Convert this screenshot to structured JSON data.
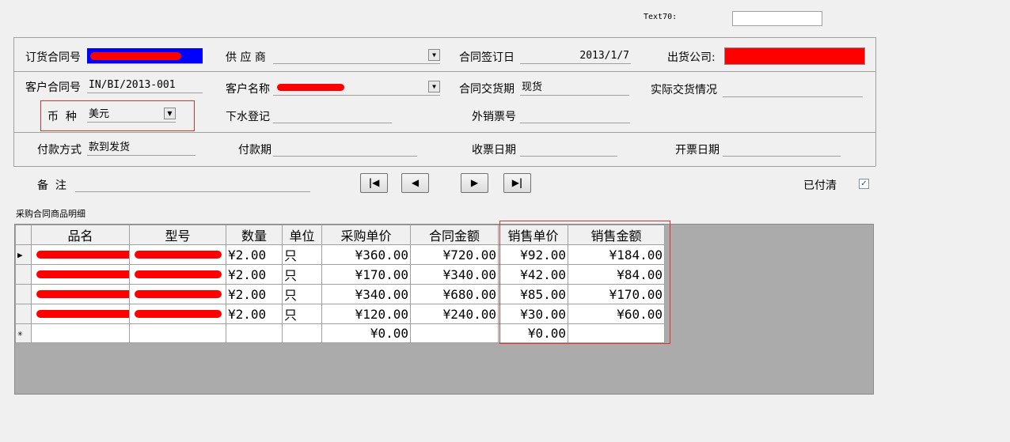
{
  "text70": {
    "label": "Text70:",
    "value": ""
  },
  "form": {
    "order_no": {
      "label": "订货合同号",
      "value": ""
    },
    "supplier": {
      "label": "供 应 商",
      "value": ""
    },
    "sign_date": {
      "label": "合同签订日",
      "value": "2013/1/7"
    },
    "ship_company": {
      "label": "出货公司:",
      "value": ""
    },
    "customer_no": {
      "label": "客户合同号",
      "value": "IN/BI/2013-001"
    },
    "customer_name": {
      "label": "客户名称",
      "value": ""
    },
    "delivery_term": {
      "label": "合同交货期",
      "value": "现货"
    },
    "actual_delivery": {
      "label": "实际交货情况",
      "value": ""
    },
    "currency": {
      "label": "币  种",
      "value": "美元"
    },
    "launch_reg": {
      "label": "下水登记",
      "value": ""
    },
    "export_invoice": {
      "label": "外销票号",
      "value": ""
    },
    "payment_method": {
      "label": "付款方式",
      "value": "款到发货"
    },
    "payment_term": {
      "label": "付款期",
      "value": ""
    },
    "receipt_date": {
      "label": "收票日期",
      "value": ""
    },
    "invoice_date": {
      "label": "开票日期",
      "value": ""
    },
    "remark": {
      "label": "备  注",
      "value": ""
    },
    "paid": {
      "label": "已付清",
      "checked": true
    }
  },
  "nav": {
    "first": "first-record-icon",
    "prev": "prev-record-icon",
    "next": "next-record-icon",
    "last": "last-record-icon"
  },
  "grid": {
    "title": "采购合同商品明细",
    "headers": [
      "品名",
      "型号",
      "数量",
      "单位",
      "采购单价",
      "合同金额",
      "销售单价",
      "销售金额"
    ],
    "rows": [
      [
        "",
        "",
        "¥2.00",
        "只",
        "¥360.00",
        "¥720.00",
        "¥92.00",
        "¥184.00"
      ],
      [
        "",
        "",
        "¥2.00",
        "只",
        "¥170.00",
        "¥340.00",
        "¥42.00",
        "¥84.00"
      ],
      [
        "",
        "",
        "¥2.00",
        "只",
        "¥340.00",
        "¥680.00",
        "¥85.00",
        "¥170.00"
      ],
      [
        "",
        "",
        "¥2.00",
        "只",
        "¥120.00",
        "¥240.00",
        "¥30.00",
        "¥60.00"
      ]
    ],
    "new_row": [
      "",
      "",
      "",
      "",
      "¥0.00",
      "",
      "¥0.00",
      ""
    ]
  }
}
